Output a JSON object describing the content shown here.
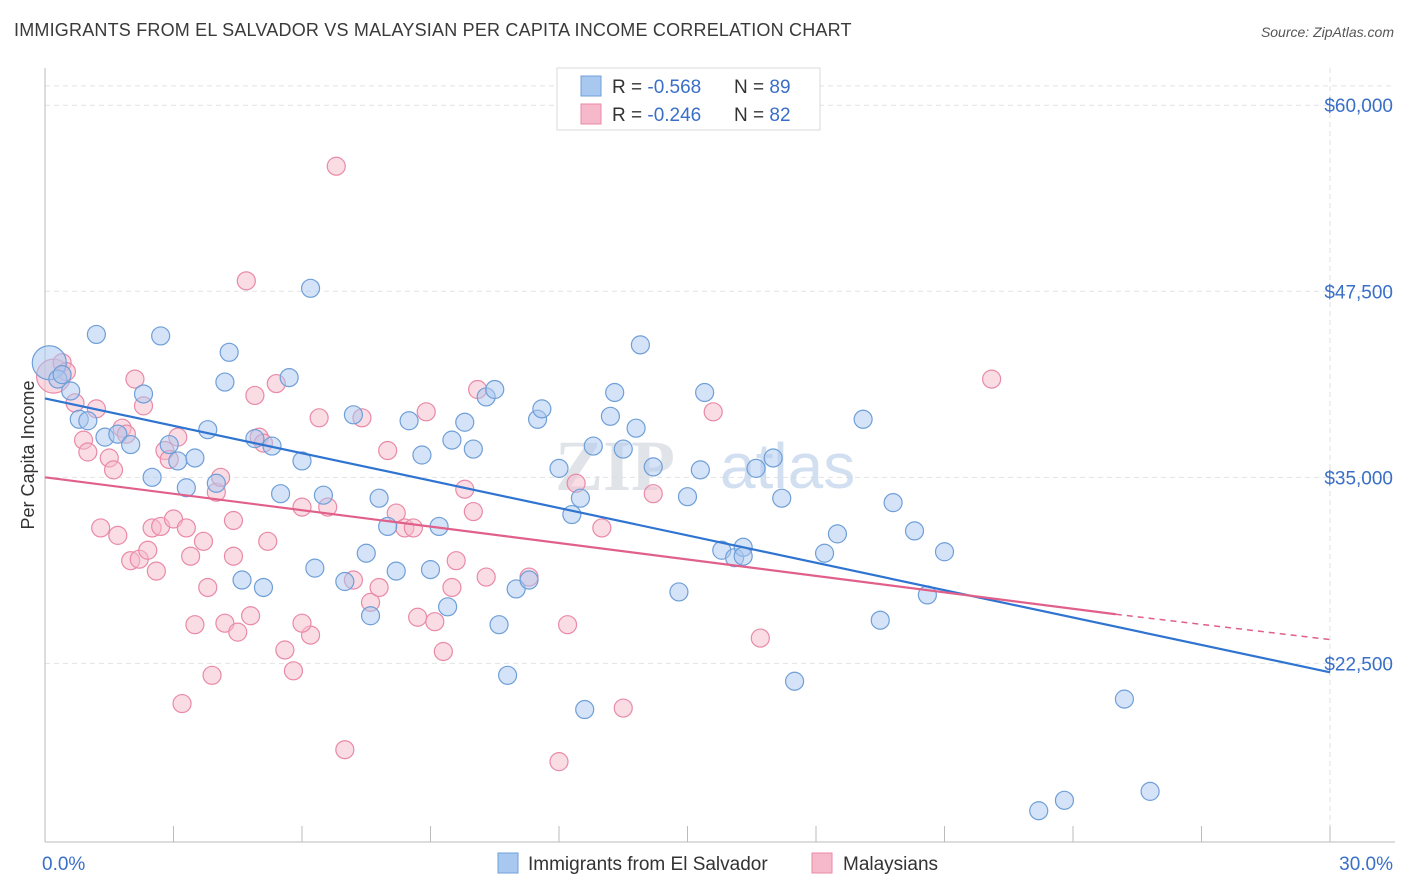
{
  "title": "IMMIGRANTS FROM EL SALVADOR VS MALAYSIAN PER CAPITA INCOME CORRELATION CHART",
  "source": "Source: ZipAtlas.com",
  "watermark": "ZIPatlas",
  "colors": {
    "blue_fill": "#a9c8f0",
    "blue_stroke": "#6f9fd8",
    "blue_line": "#2f74d0",
    "pink_fill": "#f6b9cb",
    "pink_stroke": "#e98aa7",
    "pink_line": "#e0608a",
    "tick_text": "#3a6fc8",
    "grid": "#e2e2e2"
  },
  "legend": {
    "rows": [
      {
        "r_label": "R = ",
        "r_value": "-0.568",
        "n_label": "N = ",
        "n_value": "89",
        "series": "blue"
      },
      {
        "r_label": "R = ",
        "r_value": "-0.246",
        "n_label": "N = ",
        "n_value": "82",
        "series": "pink"
      }
    ]
  },
  "chart_data": {
    "type": "scatter",
    "title": "IMMIGRANTS FROM EL SALVADOR VS MALAYSIAN PER CAPITA INCOME CORRELATION CHART",
    "xlabel": "",
    "ylabel": "Per Capita Income",
    "xlim": [
      0,
      30
    ],
    "ylim": [
      10500,
      62500
    ],
    "x_ticks_labeled": [
      {
        "value": 0,
        "label": "0.0%"
      },
      {
        "value": 30,
        "label": "30.0%"
      }
    ],
    "y_ticks": [
      {
        "value": 22500,
        "label": "$22,500"
      },
      {
        "value": 35000,
        "label": "$35,000"
      },
      {
        "value": 47500,
        "label": "$47,500"
      },
      {
        "value": 60000,
        "label": "$60,000"
      }
    ],
    "grid": "horizontal dashed",
    "legend_position": "top-center",
    "series": [
      {
        "name": "Immigrants from El Salvador",
        "color": "#a9c8f0",
        "trend": {
          "x": [
            0,
            30
          ],
          "y": [
            40300,
            21900
          ],
          "style": "solid"
        },
        "points": [
          [
            0.1,
            42.7
          ],
          [
            0.3,
            41.6
          ],
          [
            0.4,
            41.9
          ],
          [
            0.6,
            40.8
          ],
          [
            0.8,
            38.9
          ],
          [
            1.0,
            38.8
          ],
          [
            1.2,
            44.6
          ],
          [
            1.4,
            37.7
          ],
          [
            1.7,
            37.9
          ],
          [
            2.0,
            37.2
          ],
          [
            2.3,
            40.6
          ],
          [
            2.5,
            35.0
          ],
          [
            2.7,
            44.5
          ],
          [
            2.9,
            37.2
          ],
          [
            3.1,
            36.1
          ],
          [
            3.3,
            34.3
          ],
          [
            3.5,
            36.3
          ],
          [
            3.8,
            38.2
          ],
          [
            4.0,
            34.6
          ],
          [
            4.2,
            41.4
          ],
          [
            4.3,
            43.4
          ],
          [
            4.6,
            28.1
          ],
          [
            4.9,
            37.6
          ],
          [
            5.1,
            27.6
          ],
          [
            5.3,
            37.1
          ],
          [
            5.5,
            33.9
          ],
          [
            5.7,
            41.7
          ],
          [
            6.0,
            36.1
          ],
          [
            6.2,
            47.7
          ],
          [
            6.3,
            28.9
          ],
          [
            6.5,
            33.8
          ],
          [
            7.0,
            28.0
          ],
          [
            7.2,
            39.2
          ],
          [
            7.5,
            29.9
          ],
          [
            7.6,
            25.7
          ],
          [
            7.8,
            33.6
          ],
          [
            8.0,
            31.7
          ],
          [
            8.2,
            28.7
          ],
          [
            8.5,
            38.8
          ],
          [
            8.8,
            36.5
          ],
          [
            9.0,
            28.8
          ],
          [
            9.2,
            31.7
          ],
          [
            9.4,
            26.3
          ],
          [
            9.5,
            37.5
          ],
          [
            9.8,
            38.7
          ],
          [
            10.0,
            36.9
          ],
          [
            10.3,
            40.4
          ],
          [
            10.5,
            40.9
          ],
          [
            10.6,
            25.1
          ],
          [
            10.8,
            21.7
          ],
          [
            11.0,
            27.5
          ],
          [
            11.3,
            28.1
          ],
          [
            11.5,
            38.9
          ],
          [
            11.6,
            39.6
          ],
          [
            12.0,
            35.6
          ],
          [
            12.3,
            32.5
          ],
          [
            12.5,
            33.6
          ],
          [
            12.6,
            19.4
          ],
          [
            12.8,
            37.1
          ],
          [
            13.2,
            39.1
          ],
          [
            13.3,
            40.7
          ],
          [
            13.5,
            36.9
          ],
          [
            13.8,
            38.3
          ],
          [
            13.9,
            43.9
          ],
          [
            14.2,
            35.7
          ],
          [
            14.8,
            27.3
          ],
          [
            15.0,
            33.7
          ],
          [
            15.3,
            35.5
          ],
          [
            15.4,
            40.7
          ],
          [
            15.8,
            30.1
          ],
          [
            16.1,
            29.6
          ],
          [
            16.3,
            30.3
          ],
          [
            16.3,
            29.7
          ],
          [
            16.6,
            35.6
          ],
          [
            17.0,
            36.3
          ],
          [
            17.2,
            33.6
          ],
          [
            17.5,
            21.3
          ],
          [
            18.2,
            29.9
          ],
          [
            18.5,
            31.2
          ],
          [
            19.1,
            38.9
          ],
          [
            19.5,
            25.4
          ],
          [
            19.8,
            33.3
          ],
          [
            20.3,
            31.4
          ],
          [
            20.6,
            27.1
          ],
          [
            21.0,
            30.0
          ],
          [
            23.2,
            12.6
          ],
          [
            23.8,
            13.3
          ],
          [
            25.2,
            20.1
          ],
          [
            25.8,
            13.9
          ]
        ]
      },
      {
        "name": "Malaysians",
        "color": "#f6b9cb",
        "trend": {
          "x": [
            0,
            25
          ],
          "y": [
            35000,
            25800
          ],
          "style": "solid"
        },
        "trend_dashed": {
          "x": [
            25,
            30
          ],
          "y": [
            25800,
            24100
          ]
        },
        "points": [
          [
            0.2,
            41.8
          ],
          [
            0.4,
            42.7
          ],
          [
            0.5,
            42.1
          ],
          [
            0.7,
            40.0
          ],
          [
            0.9,
            37.5
          ],
          [
            1.0,
            36.7
          ],
          [
            1.2,
            39.6
          ],
          [
            1.3,
            31.6
          ],
          [
            1.5,
            36.3
          ],
          [
            1.6,
            35.5
          ],
          [
            1.7,
            31.1
          ],
          [
            1.8,
            38.3
          ],
          [
            1.9,
            37.9
          ],
          [
            2.0,
            29.4
          ],
          [
            2.1,
            41.6
          ],
          [
            2.2,
            29.5
          ],
          [
            2.3,
            39.8
          ],
          [
            2.4,
            30.1
          ],
          [
            2.5,
            31.6
          ],
          [
            2.6,
            28.7
          ],
          [
            2.7,
            31.7
          ],
          [
            2.8,
            36.8
          ],
          [
            2.9,
            36.2
          ],
          [
            3.0,
            32.2
          ],
          [
            3.1,
            37.7
          ],
          [
            3.2,
            19.8
          ],
          [
            3.3,
            31.6
          ],
          [
            3.4,
            29.7
          ],
          [
            3.5,
            25.1
          ],
          [
            3.7,
            30.7
          ],
          [
            3.8,
            27.6
          ],
          [
            3.9,
            21.7
          ],
          [
            4.0,
            34.0
          ],
          [
            4.1,
            35.0
          ],
          [
            4.2,
            25.2
          ],
          [
            4.4,
            29.7
          ],
          [
            4.5,
            24.6
          ],
          [
            4.7,
            48.2
          ],
          [
            4.8,
            25.7
          ],
          [
            4.9,
            40.5
          ],
          [
            5.0,
            37.7
          ],
          [
            5.2,
            30.7
          ],
          [
            5.4,
            41.3
          ],
          [
            5.6,
            23.4
          ],
          [
            5.8,
            22.0
          ],
          [
            6.0,
            33.0
          ],
          [
            6.2,
            24.4
          ],
          [
            6.4,
            39.0
          ],
          [
            6.6,
            33.0
          ],
          [
            6.8,
            55.9
          ],
          [
            7.0,
            16.7
          ],
          [
            7.2,
            28.1
          ],
          [
            7.4,
            39.0
          ],
          [
            7.6,
            26.6
          ],
          [
            7.8,
            27.6
          ],
          [
            8.0,
            36.8
          ],
          [
            8.2,
            32.6
          ],
          [
            8.4,
            31.6
          ],
          [
            8.7,
            25.6
          ],
          [
            8.9,
            39.4
          ],
          [
            9.1,
            25.3
          ],
          [
            9.3,
            23.3
          ],
          [
            9.5,
            27.6
          ],
          [
            9.6,
            29.4
          ],
          [
            9.8,
            34.2
          ],
          [
            10.0,
            32.7
          ],
          [
            10.1,
            40.9
          ],
          [
            10.3,
            28.3
          ],
          [
            11.3,
            28.3
          ],
          [
            12.0,
            15.9
          ],
          [
            12.2,
            25.1
          ],
          [
            12.4,
            34.6
          ],
          [
            13.0,
            31.6
          ],
          [
            13.5,
            19.5
          ],
          [
            14.2,
            33.9
          ],
          [
            15.6,
            39.4
          ],
          [
            16.7,
            24.2
          ],
          [
            22.1,
            41.6
          ],
          [
            6.0,
            25.2
          ],
          [
            8.6,
            31.6
          ],
          [
            5.1,
            37.3
          ],
          [
            4.4,
            32.1
          ]
        ]
      }
    ]
  },
  "bottom_legend": [
    {
      "label": "Immigrants from El Salvador",
      "series": "blue"
    },
    {
      "label": "Malaysians",
      "series": "pink"
    }
  ]
}
